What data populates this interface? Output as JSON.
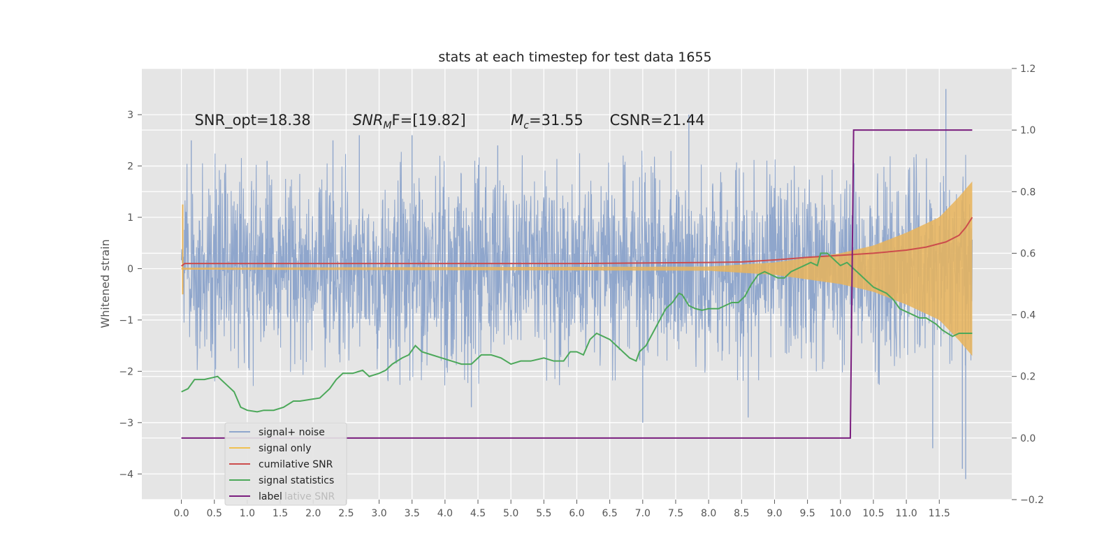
{
  "chart_data": {
    "type": "line",
    "title": "stats at each timestep for test data 1655",
    "ylabel": "Whitened strain",
    "xlim": [
      -0.6,
      12.6
    ],
    "ylim": [
      -4.5,
      3.9
    ],
    "y2lim": [
      -0.2,
      1.2
    ],
    "x_ticks": [
      "0.0",
      "0.5",
      "1.0",
      "1.5",
      "2.0",
      "2.5",
      "3.0",
      "3.5",
      "4.0",
      "4.5",
      "5.0",
      "5.5",
      "6.0",
      "6.5",
      "7.0",
      "7.5",
      "8.0",
      "8.5",
      "9.0",
      "9.5",
      "10.0",
      "10.5",
      "11.0",
      "11.5"
    ],
    "y_ticks": [
      "3",
      "2",
      "1",
      "0",
      "−1",
      "−2",
      "−3",
      "−4"
    ],
    "y2_ticks": [
      "1.2",
      "1.0",
      "0.8",
      "0.6",
      "0.4",
      "0.2",
      "0.0",
      "−0.2"
    ],
    "grid": true,
    "legend_placement": "lower-left",
    "annotations": [
      {
        "text": "SNR_opt=18.38",
        "x": 0.2,
        "y": 2.8
      },
      {
        "text_main": "SNR",
        "text_sub": "M",
        "text_rest": "F=[19.82]",
        "x": 2.6,
        "y": 2.8
      },
      {
        "text_main": "M",
        "text_sub": "c",
        "text_rest": "=31.55",
        "x": 5.0,
        "y": 2.8
      },
      {
        "text": "CSNR=21.44",
        "x": 6.5,
        "y": 2.8
      }
    ],
    "legend": [
      {
        "label": "signal+ noise",
        "color": "#8fa6cc"
      },
      {
        "label": "signal only",
        "color": "#f0c050"
      },
      {
        "label": "cumilative SNR",
        "color": "#cc4c4c"
      },
      {
        "label": "signal statistics",
        "color": "#4ca85a"
      },
      {
        "label": "label",
        "color": "#7a1d7e"
      }
    ],
    "legend_ghost": "lative SNR",
    "series": [
      {
        "name": "signal+ noise",
        "axis": "left",
        "color": "#8fa6cc",
        "noise_std": 0.9,
        "x_range": [
          0.0,
          12.0
        ],
        "peak_values": [
          [
            0.15,
            2.5
          ],
          [
            1.3,
            2.1
          ],
          [
            2.3,
            2.5
          ],
          [
            2.7,
            2.6
          ],
          [
            3.5,
            2.6
          ],
          [
            4.8,
            2.4
          ],
          [
            7.7,
            3.0
          ],
          [
            11.6,
            3.5
          ],
          [
            11.9,
            -4.1
          ],
          [
            11.85,
            -3.9
          ],
          [
            8.6,
            -2.9
          ],
          [
            7.0,
            -3.0
          ],
          [
            4.4,
            -2.7
          ],
          [
            11.4,
            -3.5
          ]
        ]
      },
      {
        "name": "signal only",
        "axis": "left",
        "color": "#f0c050",
        "x_range": [
          0.0,
          12.0
        ],
        "envelope": [
          [
            0.0,
            0.02
          ],
          [
            8.0,
            0.04
          ],
          [
            9.0,
            0.12
          ],
          [
            10.0,
            0.3
          ],
          [
            10.5,
            0.45
          ],
          [
            11.0,
            0.7
          ],
          [
            11.5,
            1.0
          ],
          [
            11.8,
            1.4
          ],
          [
            12.0,
            1.7
          ]
        ]
      },
      {
        "name": "cumilative SNR",
        "axis": "left",
        "color": "#cc4c4c",
        "points": [
          [
            0.0,
            0.05
          ],
          [
            0.05,
            0.1
          ],
          [
            2.0,
            0.1
          ],
          [
            4.0,
            0.1
          ],
          [
            6.0,
            0.1
          ],
          [
            8.0,
            0.12
          ],
          [
            8.5,
            0.13
          ],
          [
            9.0,
            0.17
          ],
          [
            9.5,
            0.22
          ],
          [
            10.0,
            0.26
          ],
          [
            10.5,
            0.3
          ],
          [
            11.0,
            0.36
          ],
          [
            11.3,
            0.42
          ],
          [
            11.6,
            0.52
          ],
          [
            11.8,
            0.65
          ],
          [
            11.9,
            0.8
          ],
          [
            12.0,
            1.0
          ]
        ]
      },
      {
        "name": "signal statistics",
        "axis": "right",
        "color": "#4ca85a",
        "points": [
          [
            0.0,
            0.15
          ],
          [
            0.1,
            0.16
          ],
          [
            0.2,
            0.19
          ],
          [
            0.35,
            0.19
          ],
          [
            0.55,
            0.2
          ],
          [
            0.7,
            0.17
          ],
          [
            0.8,
            0.15
          ],
          [
            0.9,
            0.1
          ],
          [
            1.0,
            0.09
          ],
          [
            1.15,
            0.085
          ],
          [
            1.25,
            0.09
          ],
          [
            1.4,
            0.09
          ],
          [
            1.55,
            0.1
          ],
          [
            1.7,
            0.12
          ],
          [
            1.8,
            0.12
          ],
          [
            1.95,
            0.125
          ],
          [
            2.1,
            0.13
          ],
          [
            2.25,
            0.16
          ],
          [
            2.35,
            0.19
          ],
          [
            2.45,
            0.21
          ],
          [
            2.6,
            0.21
          ],
          [
            2.75,
            0.22
          ],
          [
            2.85,
            0.2
          ],
          [
            3.0,
            0.21
          ],
          [
            3.1,
            0.22
          ],
          [
            3.2,
            0.24
          ],
          [
            3.35,
            0.26
          ],
          [
            3.45,
            0.27
          ],
          [
            3.55,
            0.3
          ],
          [
            3.65,
            0.28
          ],
          [
            3.8,
            0.27
          ],
          [
            3.95,
            0.26
          ],
          [
            4.1,
            0.25
          ],
          [
            4.25,
            0.24
          ],
          [
            4.4,
            0.24
          ],
          [
            4.55,
            0.27
          ],
          [
            4.7,
            0.27
          ],
          [
            4.85,
            0.26
          ],
          [
            5.0,
            0.24
          ],
          [
            5.15,
            0.25
          ],
          [
            5.3,
            0.25
          ],
          [
            5.5,
            0.26
          ],
          [
            5.65,
            0.25
          ],
          [
            5.8,
            0.25
          ],
          [
            5.9,
            0.28
          ],
          [
            6.0,
            0.28
          ],
          [
            6.1,
            0.27
          ],
          [
            6.2,
            0.32
          ],
          [
            6.3,
            0.34
          ],
          [
            6.4,
            0.33
          ],
          [
            6.5,
            0.32
          ],
          [
            6.6,
            0.3
          ],
          [
            6.7,
            0.28
          ],
          [
            6.8,
            0.26
          ],
          [
            6.9,
            0.25
          ],
          [
            6.95,
            0.28
          ],
          [
            7.05,
            0.3
          ],
          [
            7.15,
            0.34
          ],
          [
            7.25,
            0.38
          ],
          [
            7.35,
            0.42
          ],
          [
            7.45,
            0.44
          ],
          [
            7.55,
            0.47
          ],
          [
            7.6,
            0.465
          ],
          [
            7.7,
            0.43
          ],
          [
            7.8,
            0.42
          ],
          [
            7.9,
            0.415
          ],
          [
            8.0,
            0.42
          ],
          [
            8.15,
            0.42
          ],
          [
            8.25,
            0.43
          ],
          [
            8.35,
            0.44
          ],
          [
            8.45,
            0.44
          ],
          [
            8.55,
            0.46
          ],
          [
            8.65,
            0.5
          ],
          [
            8.75,
            0.53
          ],
          [
            8.85,
            0.54
          ],
          [
            8.95,
            0.53
          ],
          [
            9.05,
            0.52
          ],
          [
            9.15,
            0.52
          ],
          [
            9.25,
            0.54
          ],
          [
            9.35,
            0.55
          ],
          [
            9.45,
            0.56
          ],
          [
            9.55,
            0.57
          ],
          [
            9.65,
            0.56
          ],
          [
            9.7,
            0.6
          ],
          [
            9.8,
            0.6
          ],
          [
            9.9,
            0.58
          ],
          [
            10.0,
            0.56
          ],
          [
            10.1,
            0.57
          ],
          [
            10.2,
            0.55
          ],
          [
            10.3,
            0.53
          ],
          [
            10.4,
            0.51
          ],
          [
            10.5,
            0.49
          ],
          [
            10.6,
            0.48
          ],
          [
            10.7,
            0.47
          ],
          [
            10.8,
            0.45
          ],
          [
            10.9,
            0.42
          ],
          [
            11.0,
            0.41
          ],
          [
            11.1,
            0.4
          ],
          [
            11.2,
            0.39
          ],
          [
            11.3,
            0.39
          ],
          [
            11.45,
            0.37
          ],
          [
            11.55,
            0.35
          ],
          [
            11.7,
            0.33
          ],
          [
            11.8,
            0.34
          ],
          [
            11.95,
            0.34
          ],
          [
            12.0,
            0.34
          ]
        ]
      },
      {
        "name": "label",
        "axis": "right",
        "color": "#7a1d7e",
        "points": [
          [
            0.0,
            0.0
          ],
          [
            10.15,
            0.0
          ],
          [
            10.2,
            1.0
          ],
          [
            12.0,
            1.0
          ]
        ]
      }
    ]
  }
}
